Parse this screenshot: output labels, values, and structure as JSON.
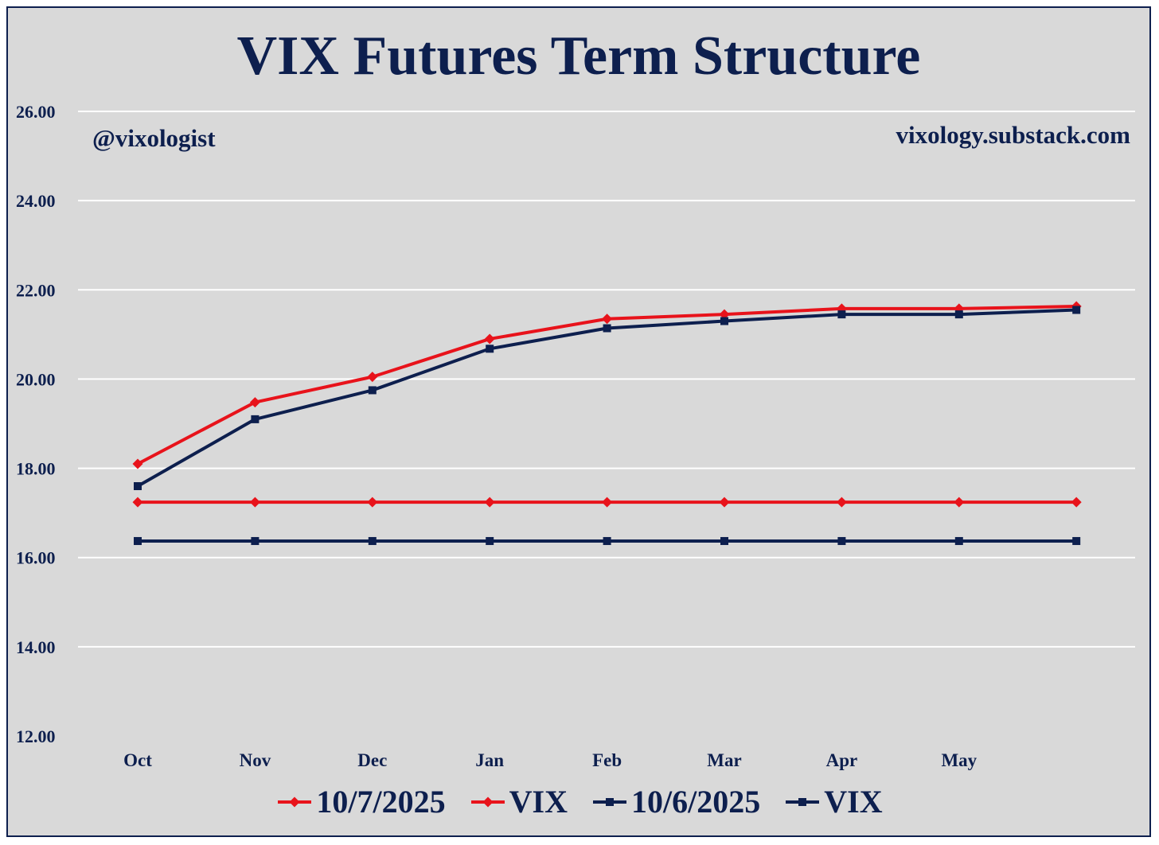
{
  "chart_data": {
    "type": "line",
    "title": "VIX Futures Term Structure",
    "watermark_left": "@vixologist",
    "watermark_right": "vixology.substack.com",
    "categories": [
      "Oct",
      "Nov",
      "Dec",
      "Jan",
      "Feb",
      "Mar",
      "Apr",
      "May",
      ""
    ],
    "ylim": [
      12,
      26
    ],
    "yticks": [
      "12.00",
      "14.00",
      "16.00",
      "18.00",
      "20.00",
      "22.00",
      "24.00",
      "26.00"
    ],
    "grid": true,
    "legend_position": "bottom",
    "series": [
      {
        "name": "10/7/2025",
        "color": "#e8131b",
        "marker": "diamond",
        "values": [
          18.1,
          19.48,
          20.05,
          20.9,
          21.35,
          21.45,
          21.58,
          21.58,
          21.63
        ]
      },
      {
        "name": "VIX",
        "color": "#e8131b",
        "marker": "diamond",
        "values": [
          17.24,
          17.24,
          17.24,
          17.24,
          17.24,
          17.24,
          17.24,
          17.24,
          17.24
        ]
      },
      {
        "name": "10/6/2025",
        "color": "#0d1f4e",
        "marker": "square",
        "values": [
          17.6,
          19.1,
          19.75,
          20.68,
          21.14,
          21.3,
          21.45,
          21.45,
          21.55
        ]
      },
      {
        "name": "VIX",
        "color": "#0d1f4e",
        "marker": "square",
        "values": [
          16.37,
          16.37,
          16.37,
          16.37,
          16.37,
          16.37,
          16.37,
          16.37,
          16.37
        ]
      }
    ]
  }
}
